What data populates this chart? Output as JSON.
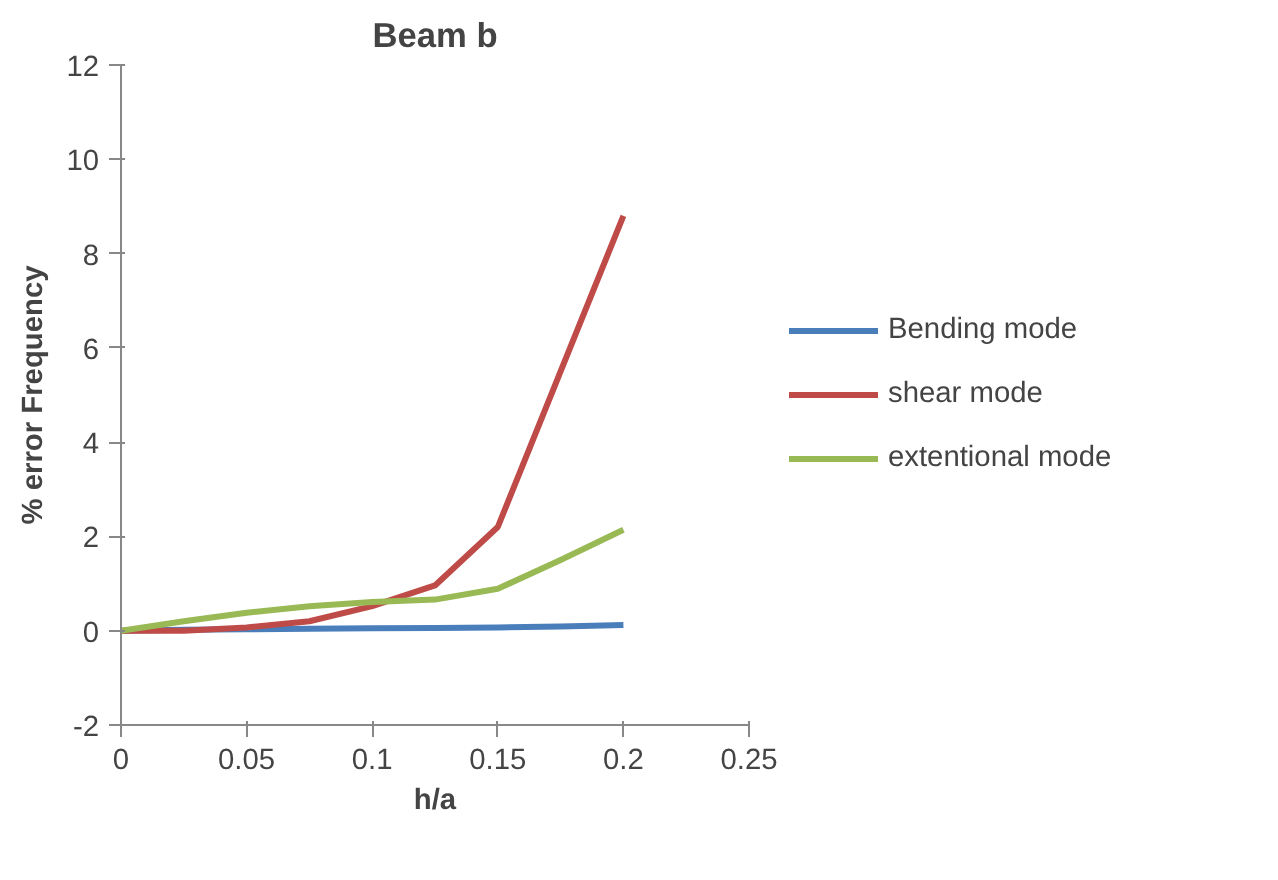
{
  "chart_data": {
    "type": "line",
    "title": "Beam b",
    "xlabel": "h/a",
    "ylabel": "% error Frequency",
    "x": [
      0,
      0.025,
      0.05,
      0.075,
      0.1,
      0.125,
      0.15,
      0.175,
      0.2
    ],
    "series": [
      {
        "name": "Bending mode",
        "color": "#4a7ebb",
        "values": [
          0,
          0.02,
          0.03,
          0.04,
          0.05,
          0.06,
          0.07,
          0.09,
          0.12
        ]
      },
      {
        "name": "shear mode",
        "color": "#be4b48",
        "values": [
          0,
          0,
          0.07,
          0.2,
          0.52,
          0.96,
          2.2,
          5.5,
          8.8
        ]
      },
      {
        "name": "extentional mode",
        "color": "#98b954",
        "values": [
          0,
          0.2,
          0.38,
          0.52,
          0.61,
          0.66,
          0.89,
          1.5,
          2.14
        ]
      }
    ],
    "xlim": [
      0,
      0.25
    ],
    "xticks": [
      0,
      0.05,
      0.1,
      0.15,
      0.2,
      0.25
    ],
    "ylim": [
      -2,
      12
    ],
    "yticks": [
      -2,
      0,
      2,
      4,
      6,
      8,
      10,
      12
    ],
    "grid": false,
    "legend": "right",
    "marker": "none",
    "line_style": "solid"
  }
}
